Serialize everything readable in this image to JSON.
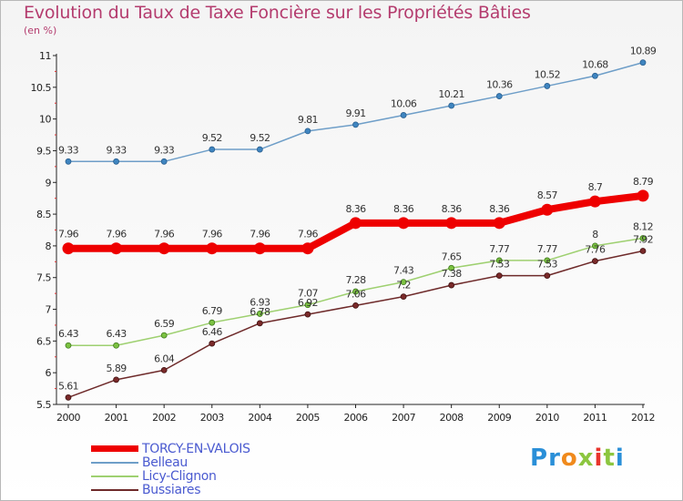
{
  "header": {
    "title": "Evolution du Taux de Taxe Foncière sur les Propriétés Bâties",
    "subtitle": "(en %)"
  },
  "logo": {
    "letters": [
      "P",
      "r",
      "o",
      "x",
      "i",
      "t",
      "i"
    ],
    "colors": [
      "#2a8fd8",
      "#2a8fd8",
      "#f08a1c",
      "#8cc63f",
      "#e8352c",
      "#8cc63f",
      "#2a8fd8"
    ]
  },
  "chart_data": {
    "type": "line",
    "title": "Evolution du Taux de Taxe Foncière sur les Propriétés Bâties",
    "ylabel": "(en %)",
    "xlabel": "",
    "ylim": [
      5.5,
      11
    ],
    "yticks": [
      5.5,
      6,
      6.5,
      7,
      7.5,
      8,
      8.5,
      9,
      9.5,
      10,
      10.5,
      11
    ],
    "ytick_labels": [
      "5.5",
      "6",
      "6.5",
      "7",
      "7.5",
      "8",
      "8.5",
      "9",
      "9.5",
      "10",
      "10.5",
      "11"
    ],
    "categories": [
      "2000",
      "2001",
      "2002",
      "2003",
      "2004",
      "2005",
      "2006",
      "2007",
      "2008",
      "2009",
      "2010",
      "2011",
      "2012"
    ],
    "grid": false,
    "legend_position": "bottom-left",
    "series": [
      {
        "name": "TORCY-EN-VALOIS",
        "color": "#ee0000",
        "values": [
          7.96,
          7.96,
          7.96,
          7.96,
          7.96,
          7.96,
          8.36,
          8.36,
          8.36,
          8.36,
          8.57,
          8.7,
          8.79
        ],
        "labels": [
          "7.96",
          "7.96",
          "7.96",
          "7.96",
          "7.96",
          "7.96",
          "8.36",
          "8.36",
          "8.36",
          "8.36",
          "8.57",
          "8.7",
          "8.79"
        ]
      },
      {
        "name": "Belleau",
        "color": "#6e9ec8",
        "values": [
          9.33,
          9.33,
          9.33,
          9.52,
          9.52,
          9.81,
          9.91,
          10.06,
          10.21,
          10.36,
          10.52,
          10.68,
          10.89
        ],
        "labels": [
          "9.33",
          "9.33",
          "9.33",
          "9.52",
          "9.52",
          "9.81",
          "9.91",
          "10.06",
          "10.21",
          "10.36",
          "10.52",
          "10.68",
          "10.89"
        ]
      },
      {
        "name": "Licy-Clignon",
        "color": "#9ed070",
        "values": [
          6.43,
          6.43,
          6.59,
          6.79,
          6.93,
          7.07,
          7.28,
          7.43,
          7.65,
          7.77,
          7.77,
          8.0,
          8.12
        ],
        "labels": [
          "6.43",
          "6.43",
          "6.59",
          "6.79",
          "6.93",
          "7.07",
          "7.28",
          "7.43",
          "7.65",
          "7.77",
          "7.77",
          "8",
          "8.12"
        ]
      },
      {
        "name": "Bussiares",
        "color": "#6e2a2a",
        "values": [
          5.61,
          5.89,
          6.04,
          6.46,
          6.78,
          6.92,
          7.06,
          7.2,
          7.38,
          7.53,
          7.53,
          7.76,
          7.92
        ],
        "labels": [
          "5.61",
          "5.89",
          "6.04",
          "6.46",
          "6.78",
          "6.92",
          "7.06",
          "7.2",
          "7.38",
          "7.53",
          "7.53",
          "7.76",
          "7.92"
        ]
      }
    ]
  }
}
